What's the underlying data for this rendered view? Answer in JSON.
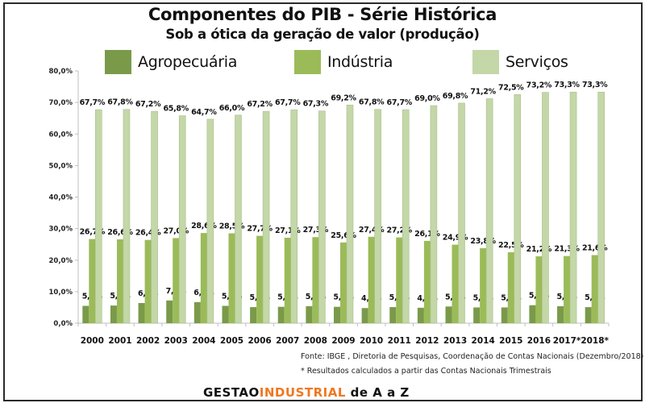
{
  "colors": {
    "agro": "#7a9a4a",
    "industria": "#9bbb59",
    "servicos": "#c4d7a8",
    "brand_dark": "#111111",
    "brand_orange": "#f07820"
  },
  "legend": [
    {
      "label": "Agropecuária",
      "color": "#7a9a4a"
    },
    {
      "label": "Indústria",
      "color": "#9bbb59"
    },
    {
      "label": "Serviços",
      "color": "#c4d7a8"
    }
  ],
  "footer": {
    "source": "Fonte: IBGE , Diretoria de Pesquisas,  Coordenação de Contas Nacionais (Dezembro/2018)",
    "note": "* Resultados calculados a partir das Contas Nacionais Trimestrais",
    "brand_part1": "GESTAO",
    "brand_part2": "INDUSTRIAL",
    "brand_part3": " de A a Z"
  },
  "chart_data": {
    "type": "bar",
    "title": "Componentes do PIB - Série Histórica",
    "subtitle": "Sob a ótica da geração de valor (produção)",
    "xlabel": "",
    "ylabel": "",
    "ylim": [
      0,
      80
    ],
    "yticks": [
      "0,0%",
      "10,0%",
      "20,0%",
      "30,0%",
      "40,0%",
      "50,0%",
      "60,0%",
      "70,0%",
      "80,0%"
    ],
    "ytick_values": [
      0,
      10,
      20,
      30,
      40,
      50,
      60,
      70,
      80
    ],
    "grid": false,
    "legend_position": "top",
    "categories": [
      "2000",
      "2001",
      "2002",
      "2003",
      "2004",
      "2005",
      "2006",
      "2007",
      "2008",
      "2009",
      "2010",
      "2011",
      "2012",
      "2013",
      "2014",
      "2015",
      "2016",
      "2017*",
      "2018*"
    ],
    "series": [
      {
        "name": "Agropecuária",
        "values": [
          5.5,
          5.6,
          6.4,
          7.2,
          6.7,
          5.5,
          5.1,
          5.2,
          5.4,
          5.2,
          4.8,
          5.1,
          4.9,
          5.3,
          5.0,
          5.0,
          5.7,
          5.4,
          5.1
        ],
        "labels": [
          "5,5%",
          "5,6%",
          "6,4%",
          "7,2%",
          "6,7%",
          "5,5%",
          "5,1%",
          "5,2%",
          "5,4%",
          "5,2%",
          "4,8%",
          "5,1%",
          "4,9%",
          "5,3%",
          "5,0%",
          "5,0%",
          "5,7%",
          "5,4%",
          "5,1%"
        ]
      },
      {
        "name": "Indústria",
        "values": [
          26.7,
          26.6,
          26.4,
          27.0,
          28.6,
          28.5,
          27.7,
          27.1,
          27.3,
          25.6,
          27.4,
          27.2,
          26.1,
          24.9,
          23.8,
          22.5,
          21.2,
          21.3,
          21.6
        ],
        "labels": [
          "26,7%",
          "26,6%",
          "26,4%",
          "27,0%",
          "28,6%",
          "28,5%",
          "27,7%",
          "27,1%",
          "27,3%",
          "25,6%",
          "27,4%",
          "27,2%",
          "26,1%",
          "24,9%",
          "23,8%",
          "22,5%",
          "21,2%",
          "21,3%",
          "21,6%"
        ]
      },
      {
        "name": "Serviços",
        "values": [
          67.7,
          67.8,
          67.2,
          65.8,
          64.7,
          66.0,
          67.2,
          67.7,
          67.3,
          69.2,
          67.8,
          67.7,
          69.0,
          69.8,
          71.2,
          72.5,
          73.2,
          73.3,
          73.3
        ],
        "labels": [
          "67,7%",
          "67,8%",
          "67,2%",
          "65,8%",
          "64,7%",
          "66,0%",
          "67,2%",
          "67,7%",
          "67,3%",
          "69,2%",
          "67,8%",
          "67,7%",
          "69,0%",
          "69,8%",
          "71,2%",
          "72,5%",
          "73,2%",
          "73,3%",
          "73,3%"
        ]
      }
    ]
  }
}
